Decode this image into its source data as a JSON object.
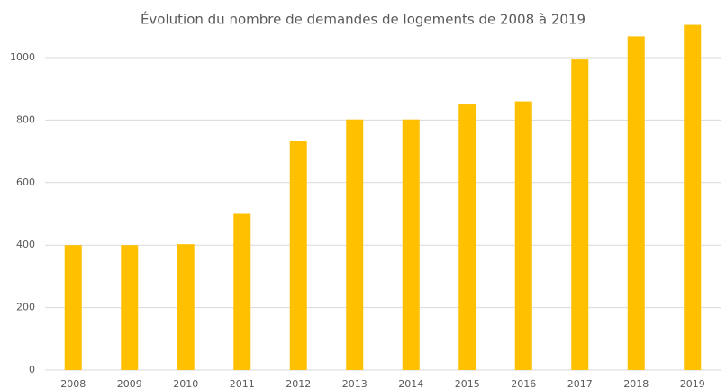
{
  "chart_data": {
    "type": "bar",
    "title": "Évolution du nombre de demandes de logements de 2008 à 2019",
    "categories": [
      "2008",
      "2009",
      "2010",
      "2011",
      "2012",
      "2013",
      "2014",
      "2015",
      "2016",
      "2017",
      "2018",
      "2019"
    ],
    "values": [
      400,
      400,
      403,
      500,
      732,
      802,
      802,
      850,
      860,
      994,
      1068,
      1105
    ],
    "color": "#ffc000",
    "ylim": [
      0,
      1120
    ],
    "yticks": [
      0,
      200,
      400,
      600,
      800,
      1000
    ],
    "grid": true
  }
}
